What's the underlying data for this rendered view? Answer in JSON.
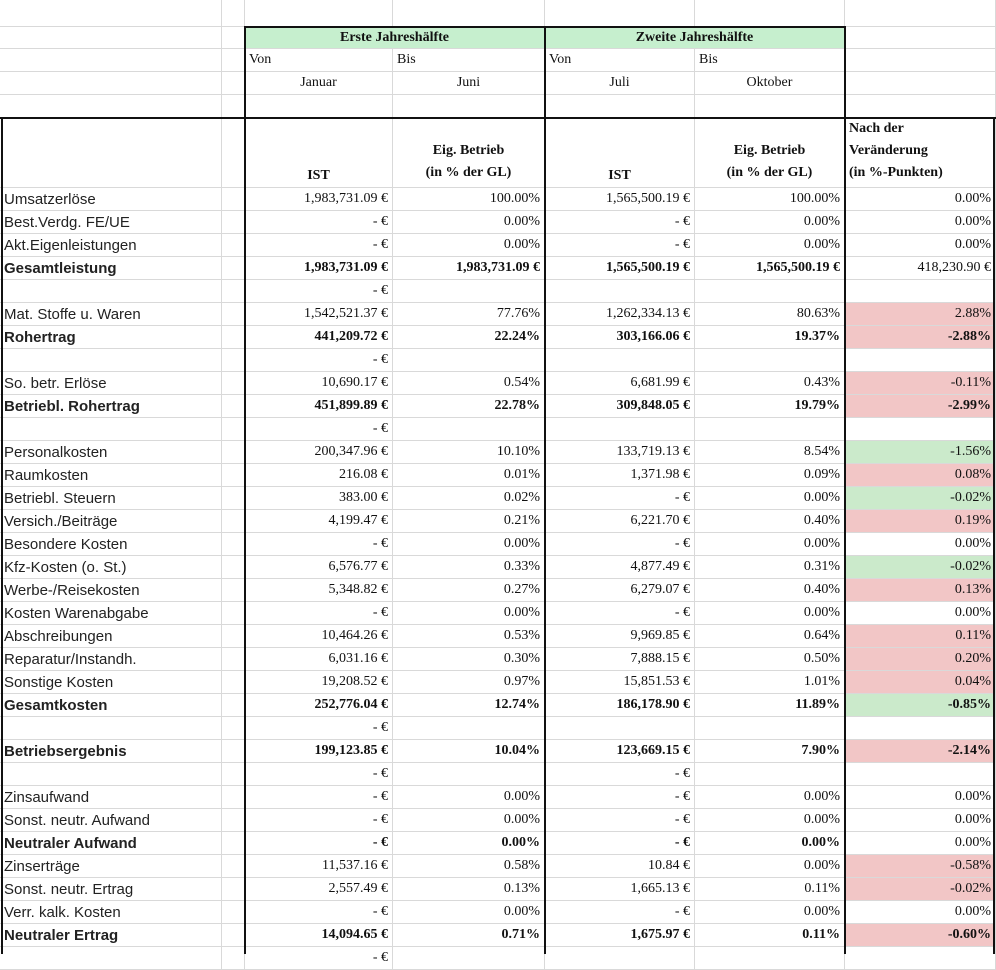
{
  "header": {
    "periods": [
      {
        "title": "Erste Jahreshälfte",
        "from_label": "Von",
        "to_label": "Bis",
        "from": "Januar",
        "to": "Juni",
        "col1": "IST",
        "col2": "Eig. Betrieb\n(in % der GL)"
      },
      {
        "title": "Zweite Jahreshälfte",
        "from_label": "Von",
        "to_label": "Bis",
        "from": "Juli",
        "to": "Oktober",
        "col1": "IST",
        "col2": "Eig. Betrieb\n(in % der GL)"
      }
    ],
    "change": "Nach der\nVeränderung\n(in %-Punkten)"
  },
  "colors": {
    "red": "#f2c6c6",
    "green": "#cbeacb",
    "header": "#c6efce"
  },
  "table": {
    "rows": [
      {
        "cells": [
          "Umsatzerlöse",
          "1,983,731.09 €",
          "100.00%",
          "1,565,500.19 €",
          "100.00%",
          "0.00%"
        ]
      },
      {
        "cells": [
          "Best.Verdg. FE/UE",
          "- €",
          "0.00%",
          "- €",
          "0.00%",
          "0.00%"
        ]
      },
      {
        "cells": [
          "Akt.Eigenleistungen",
          "- €",
          "0.00%",
          "- €",
          "0.00%",
          "0.00%"
        ]
      },
      {
        "cells": [
          "Gesamtleistung",
          "1,983,731.09 €",
          "1,983,731.09 €",
          "1,565,500.19 €",
          "1,565,500.19 €",
          "418,230.90 €"
        ],
        "bold": true
      },
      {
        "cells": [
          null,
          "- €",
          null,
          null,
          null,
          null
        ]
      },
      {
        "cells": [
          "Mat. Stoffe u. Waren",
          "1,542,521.37 €",
          "77.76%",
          "1,262,334.13 €",
          "80.63%",
          "2.88%"
        ],
        "change_color": "red"
      },
      {
        "cells": [
          "Rohertrag",
          "441,209.72 €",
          "22.24%",
          "303,166.06 €",
          "19.37%",
          "-2.88%"
        ],
        "bold": true,
        "change_color": "red"
      },
      {
        "cells": [
          null,
          "- €",
          null,
          null,
          null,
          null
        ]
      },
      {
        "cells": [
          "So. betr. Erlöse",
          "10,690.17 €",
          "0.54%",
          "6,681.99 €",
          "0.43%",
          "-0.11%"
        ],
        "change_color": "red"
      },
      {
        "cells": [
          "Betriebl. Rohertrag",
          "451,899.89 €",
          "22.78%",
          "309,848.05 €",
          "19.79%",
          "-2.99%"
        ],
        "bold": true,
        "change_color": "red"
      },
      {
        "cells": [
          null,
          "- €",
          null,
          null,
          null,
          null
        ]
      },
      {
        "cells": [
          "Personalkosten",
          "200,347.96 €",
          "10.10%",
          "133,719.13 €",
          "8.54%",
          "-1.56%"
        ],
        "change_color": "green"
      },
      {
        "cells": [
          "Raumkosten",
          "216.08 €",
          "0.01%",
          "1,371.98 €",
          "0.09%",
          "0.08%"
        ],
        "change_color": "red"
      },
      {
        "cells": [
          "Betriebl. Steuern",
          "383.00 €",
          "0.02%",
          "- €",
          "0.00%",
          "-0.02%"
        ],
        "change_color": "green"
      },
      {
        "cells": [
          "Versich./Beiträge",
          "4,199.47 €",
          "0.21%",
          "6,221.70 €",
          "0.40%",
          "0.19%"
        ],
        "change_color": "red"
      },
      {
        "cells": [
          "Besondere Kosten",
          "- €",
          "0.00%",
          "- €",
          "0.00%",
          "0.00%"
        ]
      },
      {
        "cells": [
          "Kfz-Kosten (o. St.)",
          "6,576.77 €",
          "0.33%",
          "4,877.49 €",
          "0.31%",
          "-0.02%"
        ],
        "change_color": "green"
      },
      {
        "cells": [
          "Werbe-/Reisekosten",
          "5,348.82 €",
          "0.27%",
          "6,279.07 €",
          "0.40%",
          "0.13%"
        ],
        "change_color": "red"
      },
      {
        "cells": [
          "Kosten Warenabgabe",
          "- €",
          "0.00%",
          "- €",
          "0.00%",
          "0.00%"
        ]
      },
      {
        "cells": [
          "Abschreibungen",
          "10,464.26 €",
          "0.53%",
          "9,969.85 €",
          "0.64%",
          "0.11%"
        ],
        "change_color": "red"
      },
      {
        "cells": [
          "Reparatur/Instandh.",
          "6,031.16 €",
          "0.30%",
          "7,888.15 €",
          "0.50%",
          "0.20%"
        ],
        "change_color": "red"
      },
      {
        "cells": [
          "Sonstige Kosten",
          "19,208.52 €",
          "0.97%",
          "15,851.53 €",
          "1.01%",
          "0.04%"
        ],
        "change_color": "red"
      },
      {
        "cells": [
          "Gesamtkosten",
          "252,776.04 €",
          "12.74%",
          "186,178.90 €",
          "11.89%",
          "-0.85%"
        ],
        "bold": true,
        "change_color": "green"
      },
      {
        "cells": [
          null,
          "- €",
          null,
          null,
          null,
          null
        ]
      },
      {
        "cells": [
          "Betriebsergebnis",
          "199,123.85 €",
          "10.04%",
          "123,669.15 €",
          "7.90%",
          "-2.14%"
        ],
        "bold": true,
        "change_color": "red"
      },
      {
        "cells": [
          null,
          "- €",
          null,
          "- €",
          null,
          null
        ]
      },
      {
        "cells": [
          "Zinsaufwand",
          "- €",
          "0.00%",
          "- €",
          "0.00%",
          "0.00%"
        ]
      },
      {
        "cells": [
          "Sonst. neutr. Aufwand",
          "- €",
          "0.00%",
          "- €",
          "0.00%",
          "0.00%"
        ]
      },
      {
        "cells": [
          "Neutraler Aufwand",
          "- €",
          "0.00%",
          "- €",
          "0.00%",
          "0.00%"
        ],
        "bold": true
      },
      {
        "cells": [
          "Zinserträge",
          "11,537.16 €",
          "0.58%",
          "10.84 €",
          "0.00%",
          "-0.58%"
        ],
        "change_color": "red"
      },
      {
        "cells": [
          "Sonst. neutr. Ertrag",
          "2,557.49 €",
          "0.13%",
          "1,665.13 €",
          "0.11%",
          "-0.02%"
        ],
        "change_color": "red"
      },
      {
        "cells": [
          "Verr. kalk. Kosten",
          "- €",
          "0.00%",
          "- €",
          "0.00%",
          "0.00%"
        ]
      },
      {
        "cells": [
          "Neutraler Ertrag",
          "14,094.65 €",
          "0.71%",
          "1,675.97 €",
          "0.11%",
          "-0.60%"
        ],
        "bold": true,
        "change_color": "red"
      },
      {
        "cells": [
          null,
          "- €",
          null,
          null,
          null,
          null
        ]
      }
    ]
  }
}
